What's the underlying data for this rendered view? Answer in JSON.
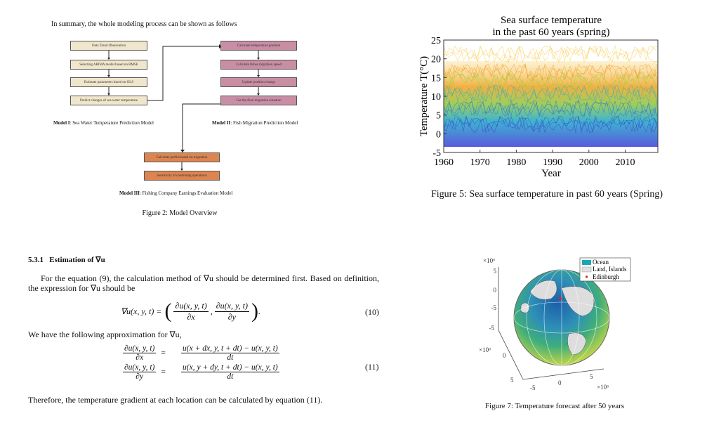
{
  "figure2": {
    "intro": "In summary, the whole modeling process can be shown as follows",
    "model1": {
      "steps": [
        "Data Trend Observation",
        "Selecting ARIMA model based on RMSE",
        "Estimate parameters based on OLS",
        "Predict changes of sea water temperature"
      ],
      "prefix": "Model I",
      "label": ": Sea Water Temperature Prediction Model"
    },
    "model2": {
      "steps": [
        "Calculate temperature gradient",
        "Calculate fishes migration speed",
        "Update position change",
        "Get the final migration situation"
      ],
      "prefix": "Model II",
      "label": ": Fish Migration Prediction Model"
    },
    "model3": {
      "steps": [
        "Calculate profits based on migration",
        "Sensitivity of continuing operations"
      ],
      "prefix": "Model III",
      "label": ": Fishing Company Earnings Evaluation Model"
    },
    "caption": "Figure 2: Model Overview"
  },
  "figure5": {
    "title": [
      "Sea surface temperature",
      "in the past 60 years (spring)"
    ],
    "ylabel": "Temperature T(°C)",
    "xlabel": "Year",
    "ylim": [
      -5,
      25
    ],
    "yticks": [
      -5,
      0,
      5,
      10,
      15,
      20,
      25
    ],
    "xlim": [
      1960,
      2019
    ],
    "xticks": [
      1960,
      1970,
      1980,
      1990,
      2000,
      2010
    ],
    "caption": "Figure 5: Sea surface temperature in past 60 years (Spring)"
  },
  "section": {
    "number": "5.3.1",
    "heading": "Estimation of ∇u",
    "paragraph1": "For the equation (9), the calculation method of ∇u should be determined first. Based on definition, the expression for ∇u should be",
    "eq10": {
      "lhs": "∇u(x, y, t) =",
      "open": "(",
      "close": ")",
      "sep": ",",
      "end": ".",
      "fracs": [
        {
          "num": "∂u(x, y, t)",
          "den": "∂x"
        },
        {
          "num": "∂u(x, y, t)",
          "den": "∂y"
        }
      ],
      "number": "(10)"
    },
    "paragraph2": "We have the following approximation for ∇u,",
    "eq11": {
      "eq": "=",
      "rows": [
        {
          "lnum": "∂u(x, y, t)",
          "lden": "∂x",
          "rnum": "u(x + dx, y, t + dt) − u(x, y, t)",
          "rden": "dt"
        },
        {
          "lnum": "∂u(x, y, t)",
          "lden": "∂y",
          "rnum": "u(x, y + dy, t + dt) − u(x, y, t)",
          "rden": "dt"
        }
      ],
      "number": "(11)"
    },
    "paragraph3": "Therefore, the temperature gradient at each location can be calculated by equation (11)."
  },
  "figure7": {
    "legend": [
      "Ocean",
      "Land, Islands",
      "Edinburgh"
    ],
    "z_axis": {
      "exponent": "×10⁶",
      "ticks": [
        "5",
        "0",
        "-5"
      ]
    },
    "y_axis": {
      "exponent": "×10⁶",
      "ticks": [
        "-5",
        "0",
        "5"
      ]
    },
    "x_axis": {
      "exponent": "×10⁶",
      "ticks": [
        "-5",
        "0",
        "5"
      ]
    },
    "caption": "Figure 7: Temperature forecast after 50 years"
  }
}
